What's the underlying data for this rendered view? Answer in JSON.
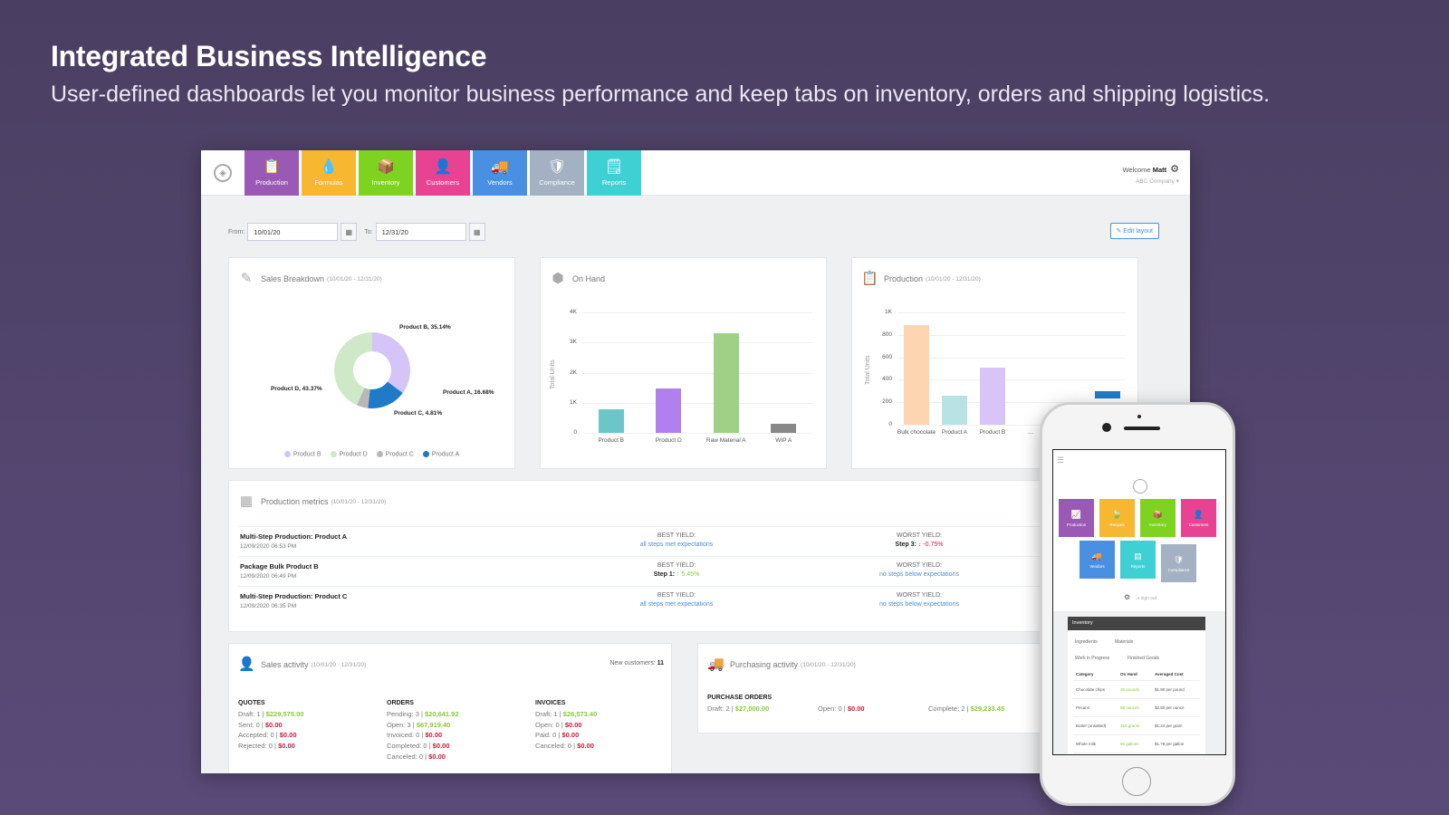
{
  "hero": {
    "title": "Integrated Business Intelligence",
    "subtitle": "User-defined dashboards let you monitor business performance and keep tabs on inventory, orders and shipping logistics."
  },
  "nav": {
    "tiles": [
      {
        "label": "Production",
        "icon": "clipboard-icon",
        "glyph": "📋",
        "color": "#9b59b6"
      },
      {
        "label": "Formulas",
        "icon": "drop-icon",
        "glyph": "💧",
        "color": "#f7b731"
      },
      {
        "label": "Inventory",
        "icon": "box-icon",
        "glyph": "📦",
        "color": "#7ed321"
      },
      {
        "label": "Customers",
        "icon": "user-icon",
        "glyph": "👤",
        "color": "#e84393"
      },
      {
        "label": "Vendors",
        "icon": "truck-icon",
        "glyph": "🚚",
        "color": "#4a90e2"
      },
      {
        "label": "Compliance",
        "icon": "shield-icon",
        "glyph": "🛡",
        "color": "#a3b1c2"
      },
      {
        "label": "Reports",
        "icon": "note-icon",
        "glyph": "🗒",
        "color": "#3fd0d4"
      }
    ],
    "welcome_prefix": "Welcome",
    "user": "Matt",
    "company": "ABC Company ▾"
  },
  "filters": {
    "from_label": "From:",
    "from_value": "10/01/20",
    "to_label": "To:",
    "to_value": "12/31/20",
    "edit_layout": "✎ Edit layout"
  },
  "cards": {
    "sales_breakdown": {
      "title": "Sales Breakdown",
      "range": "(10/01/20 - 12/31/20)"
    },
    "on_hand": {
      "title": "On Hand"
    },
    "production": {
      "title": "Production",
      "range": "(10/01/20 - 12/31/20)"
    },
    "production_metrics": {
      "title": "Production metrics",
      "range": "(10/01/20 - 12/31/20)",
      "rows": [
        {
          "name": "Multi-Step Production: Product A",
          "time": "12/09/2020 06:53 PM",
          "best_label": "BEST YIELD:",
          "best_value": "all steps met expectations",
          "worst_label": "WORST YIELD:",
          "worst_step": "Step 3:",
          "worst_value": "↓ -0.75%"
        },
        {
          "name": "Package Bulk Product B",
          "time": "12/09/2020 06:49 PM",
          "best_label": "BEST YIELD:",
          "best_step": "Step 1:",
          "best_value": "↑ 5.45%",
          "worst_label": "WORST YIELD:",
          "worst_value": "no steps below expectations"
        },
        {
          "name": "Multi-Step Production: Product C",
          "time": "12/09/2020 06:35 PM",
          "best_label": "BEST YIELD:",
          "best_value": "all steps met expectations",
          "worst_label": "WORST YIELD:",
          "worst_value": "no steps below expectations"
        }
      ]
    },
    "sales_activity": {
      "title": "Sales activity",
      "range": "(10/01/20 - 12/31/20)",
      "new_customers_label": "New customers:",
      "new_customers": "11",
      "quotes": {
        "header": "QUOTES",
        "rows": [
          {
            "label": "Draft: 1 |",
            "amount": "$229,575.00",
            "status": "green"
          },
          {
            "label": "Sent: 0 |",
            "amount": "$0.00",
            "status": "red"
          },
          {
            "label": "Accepted: 0 |",
            "amount": "$0.00",
            "status": "red"
          },
          {
            "label": "Rejected: 0 |",
            "amount": "$0.00",
            "status": "red"
          }
        ]
      },
      "orders": {
        "header": "ORDERS",
        "rows": [
          {
            "label": "Pending: 3 |",
            "amount": "$20,641.92",
            "status": "green"
          },
          {
            "label": "Open: 3 |",
            "amount": "$67,919.40",
            "status": "green"
          },
          {
            "label": "Invoiced: 0 |",
            "amount": "$0.00",
            "status": "red"
          },
          {
            "label": "Completed: 0 |",
            "amount": "$0.00",
            "status": "red"
          },
          {
            "label": "Canceled: 0 |",
            "amount": "$0.00",
            "status": "red"
          }
        ]
      },
      "invoices": {
        "header": "INVOICES",
        "rows": [
          {
            "label": "Draft: 1 |",
            "amount": "$26,573.40",
            "status": "green"
          },
          {
            "label": "Open: 0 |",
            "amount": "$0.00",
            "status": "red"
          },
          {
            "label": "Paid: 0 |",
            "amount": "$0.00",
            "status": "red"
          },
          {
            "label": "Canceled: 0 |",
            "amount": "$0.00",
            "status": "red"
          }
        ]
      }
    },
    "purchasing_activity": {
      "title": "Purchasing activity",
      "range": "(10/01/20 - 12/31/20)",
      "header": "PURCHASE ORDERS",
      "draft_label": "Draft: 2 |",
      "draft_amount": "$27,000.00",
      "open_label": "Open: 0 |",
      "open_amount": "$0.00",
      "complete_label": "Complete: 2 |",
      "complete_amount": "$29,233.45"
    }
  },
  "chart_data": [
    {
      "type": "pie",
      "title": "Sales Breakdown (10/01/20 - 12/31/20)",
      "categories": [
        "Product B",
        "Product A",
        "Product C",
        "Product D"
      ],
      "values": [
        35.14,
        16.68,
        4.81,
        43.37
      ],
      "colors": [
        "#d4c4f7",
        "#1f7bc8",
        "#b8b8b8",
        "#cfe8c8"
      ],
      "labels": [
        "Product B, 35.14%",
        "Product A, 16.68%",
        "Product C, 4.81%",
        "Product D, 43.37%"
      ],
      "legend": [
        "Product B",
        "Product D",
        "Product C",
        "Product A"
      ],
      "legend_position": "bottom",
      "donut": true
    },
    {
      "type": "bar",
      "title": "On Hand",
      "categories": [
        "Product B",
        "Product D",
        "Raw Material A",
        "WIP A"
      ],
      "values": [
        780,
        1480,
        3300,
        290
      ],
      "colors": [
        "#6cc5c7",
        "#b07ff0",
        "#9fd086",
        "#888888"
      ],
      "ylabel": "Total Units",
      "yticks": [
        "0",
        "1K",
        "2K",
        "3K",
        "4K"
      ],
      "ylim": [
        0,
        4000
      ],
      "grid": true
    },
    {
      "type": "bar",
      "title": "Production (10/01/20 - 12/31/20)",
      "categories": [
        "Bulk chocolate",
        "Product A",
        "Product B",
        "…",
        "…"
      ],
      "values": [
        890,
        260,
        510,
        null,
        300
      ],
      "colors": [
        "#fdd6b1",
        "#b9e2e2",
        "#d8c4f7",
        "#cccccc",
        "#1f7bc8"
      ],
      "ylabel": "Total Units",
      "yticks": [
        "0",
        "200",
        "400",
        "600",
        "800",
        "1K"
      ],
      "ylim": [
        0,
        1000
      ],
      "grid": true
    }
  ],
  "mobile": {
    "tiles": [
      {
        "label": "Production",
        "color": "#9b59b6",
        "glyph": "📈"
      },
      {
        "label": "Recipes",
        "color": "#f7b731",
        "glyph": "🍃"
      },
      {
        "label": "Inventory",
        "color": "#7ed321",
        "glyph": "📦"
      },
      {
        "label": "Customers",
        "color": "#e84393",
        "glyph": "👤"
      },
      {
        "label": "Vendors",
        "color": "#4a90e2",
        "glyph": "🚚"
      },
      {
        "label": "Reports",
        "color": "#3fd0d4",
        "glyph": "▤"
      },
      {
        "label": "Compliance",
        "color": "#a3b1c2",
        "glyph": "🛡"
      }
    ],
    "sign_out": "⇥ sign out",
    "inventory_title": "Inventory",
    "tabs": [
      "Ingredients",
      "Materials",
      "Work in Progress",
      "Finished Goods"
    ],
    "table": {
      "headers": [
        "Category",
        "On Hand",
        "Averaged Cost"
      ],
      "rows": [
        [
          "Chocolate chips",
          "25 pounds",
          "$1.90 per pound"
        ],
        [
          "Pecans",
          "58 ounces",
          "$2.50 per ounce"
        ],
        [
          "Butter (unsalted)",
          "250 grams",
          "$1.24 per gram"
        ],
        [
          "Whole milk",
          "55 gallons",
          "$1.78 per gallon"
        ]
      ]
    }
  }
}
